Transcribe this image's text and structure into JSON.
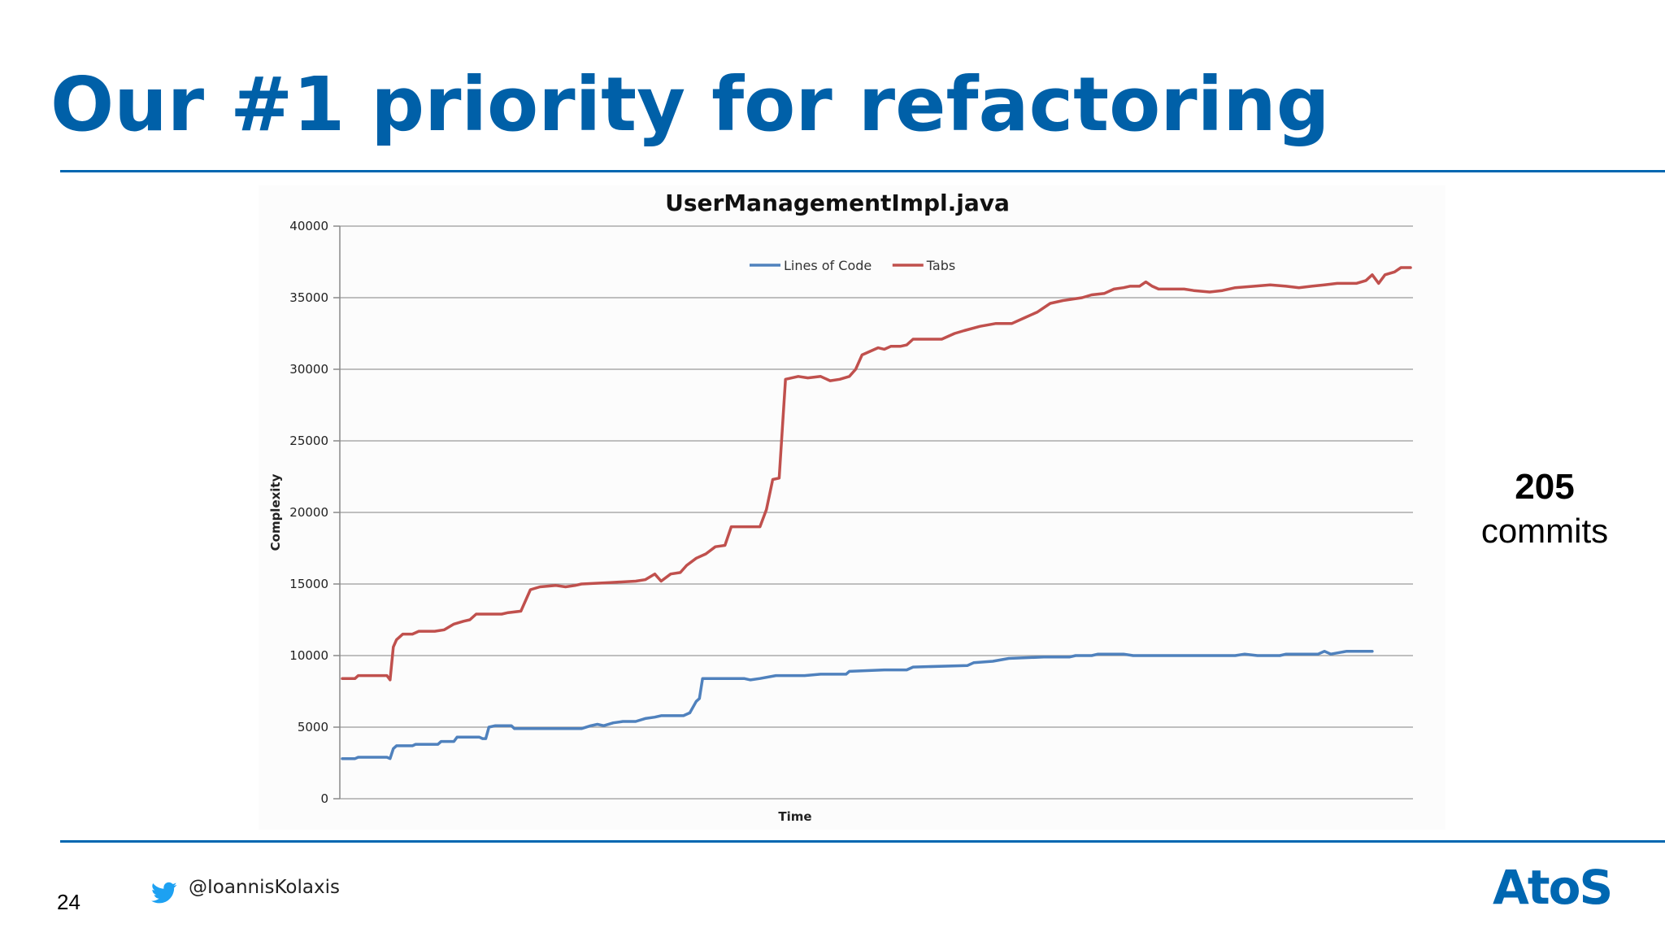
{
  "slide": {
    "title": "Our #1 priority for refactoring",
    "side_note": {
      "number": "205",
      "text": "commits"
    },
    "page_number": "24",
    "twitter_handle": "@IoannisKolaxis",
    "brand": "AtoS",
    "accent_color": "#0067b1"
  },
  "chart_data": {
    "type": "line",
    "title": "UserManagementImpl.java",
    "xlabel": "Time",
    "ylabel": "Complexity",
    "ylim": [
      0,
      40000
    ],
    "yticks": [
      "0",
      "5000",
      "10000",
      "15000",
      "20000",
      "25000",
      "30000",
      "35000",
      "40000"
    ],
    "grid": true,
    "legend_position": "top-center",
    "x_note": "commit index 0-205 (no tick labels shown)",
    "series": [
      {
        "name": "Lines of Code",
        "color": "#4f81bd",
        "points": [
          [
            0,
            2800
          ],
          [
            8,
            2800
          ],
          [
            10,
            2900
          ],
          [
            28,
            2900
          ],
          [
            30,
            2800
          ],
          [
            32,
            3500
          ],
          [
            34,
            3700
          ],
          [
            44,
            3700
          ],
          [
            46,
            3800
          ],
          [
            60,
            3800
          ],
          [
            62,
            4000
          ],
          [
            70,
            4000
          ],
          [
            72,
            4300
          ],
          [
            86,
            4300
          ],
          [
            88,
            4200
          ],
          [
            90,
            4200
          ],
          [
            92,
            5000
          ],
          [
            96,
            5100
          ],
          [
            106,
            5100
          ],
          [
            108,
            4900
          ],
          [
            150,
            4900
          ],
          [
            156,
            5100
          ],
          [
            160,
            5200
          ],
          [
            164,
            5100
          ],
          [
            170,
            5300
          ],
          [
            176,
            5400
          ],
          [
            184,
            5400
          ],
          [
            190,
            5600
          ],
          [
            196,
            5700
          ],
          [
            200,
            5800
          ],
          [
            214,
            5800
          ],
          [
            218,
            6000
          ],
          [
            222,
            6800
          ],
          [
            224,
            7000
          ],
          [
            226,
            8400
          ],
          [
            252,
            8400
          ],
          [
            256,
            8300
          ],
          [
            262,
            8400
          ],
          [
            272,
            8600
          ],
          [
            290,
            8600
          ],
          [
            300,
            8700
          ],
          [
            316,
            8700
          ],
          [
            318,
            8900
          ],
          [
            340,
            9000
          ],
          [
            354,
            9000
          ],
          [
            358,
            9200
          ],
          [
            392,
            9300
          ],
          [
            396,
            9500
          ],
          [
            408,
            9600
          ],
          [
            418,
            9800
          ],
          [
            440,
            9900
          ],
          [
            456,
            9900
          ],
          [
            460,
            10000
          ],
          [
            470,
            10000
          ],
          [
            474,
            10100
          ],
          [
            490,
            10100
          ],
          [
            496,
            10000
          ],
          [
            560,
            10000
          ],
          [
            566,
            10100
          ],
          [
            574,
            10000
          ],
          [
            588,
            10000
          ],
          [
            592,
            10100
          ],
          [
            612,
            10100
          ],
          [
            616,
            10300
          ],
          [
            620,
            10100
          ],
          [
            630,
            10300
          ],
          [
            646,
            10300
          ]
        ]
      },
      {
        "name": "Tabs",
        "color": "#c0504d",
        "points": [
          [
            0,
            8400
          ],
          [
            8,
            8400
          ],
          [
            10,
            8600
          ],
          [
            28,
            8600
          ],
          [
            30,
            8300
          ],
          [
            32,
            10600
          ],
          [
            34,
            11100
          ],
          [
            38,
            11500
          ],
          [
            44,
            11500
          ],
          [
            48,
            11700
          ],
          [
            58,
            11700
          ],
          [
            64,
            11800
          ],
          [
            70,
            12200
          ],
          [
            76,
            12400
          ],
          [
            80,
            12500
          ],
          [
            84,
            12900
          ],
          [
            100,
            12900
          ],
          [
            104,
            13000
          ],
          [
            112,
            13100
          ],
          [
            118,
            14600
          ],
          [
            124,
            14800
          ],
          [
            134,
            14900
          ],
          [
            140,
            14800
          ],
          [
            146,
            14900
          ],
          [
            150,
            15000
          ],
          [
            168,
            15100
          ],
          [
            184,
            15200
          ],
          [
            190,
            15300
          ],
          [
            196,
            15700
          ],
          [
            200,
            15200
          ],
          [
            206,
            15700
          ],
          [
            212,
            15800
          ],
          [
            216,
            16300
          ],
          [
            222,
            16800
          ],
          [
            228,
            17100
          ],
          [
            234,
            17600
          ],
          [
            240,
            17700
          ],
          [
            244,
            19000
          ],
          [
            252,
            19000
          ],
          [
            262,
            19000
          ],
          [
            266,
            20200
          ],
          [
            270,
            22300
          ],
          [
            274,
            22400
          ],
          [
            278,
            29300
          ],
          [
            286,
            29500
          ],
          [
            292,
            29400
          ],
          [
            300,
            29500
          ],
          [
            306,
            29200
          ],
          [
            312,
            29300
          ],
          [
            318,
            29500
          ],
          [
            322,
            30000
          ],
          [
            326,
            31000
          ],
          [
            332,
            31300
          ],
          [
            336,
            31500
          ],
          [
            340,
            31400
          ],
          [
            344,
            31600
          ],
          [
            350,
            31600
          ],
          [
            354,
            31700
          ],
          [
            358,
            32100
          ],
          [
            376,
            32100
          ],
          [
            384,
            32500
          ],
          [
            390,
            32700
          ],
          [
            400,
            33000
          ],
          [
            410,
            33200
          ],
          [
            420,
            33200
          ],
          [
            428,
            33600
          ],
          [
            436,
            34000
          ],
          [
            444,
            34600
          ],
          [
            452,
            34800
          ],
          [
            464,
            35000
          ],
          [
            470,
            35200
          ],
          [
            478,
            35300
          ],
          [
            484,
            35600
          ],
          [
            490,
            35700
          ],
          [
            494,
            35800
          ],
          [
            500,
            35800
          ],
          [
            504,
            36100
          ],
          [
            508,
            35800
          ],
          [
            512,
            35600
          ],
          [
            520,
            35600
          ],
          [
            528,
            35600
          ],
          [
            534,
            35500
          ],
          [
            544,
            35400
          ],
          [
            552,
            35500
          ],
          [
            560,
            35700
          ],
          [
            572,
            35800
          ],
          [
            582,
            35900
          ],
          [
            592,
            35800
          ],
          [
            600,
            35700
          ],
          [
            608,
            35800
          ],
          [
            616,
            35900
          ],
          [
            624,
            36000
          ],
          [
            632,
            36000
          ],
          [
            636,
            36000
          ],
          [
            642,
            36200
          ],
          [
            646,
            36600
          ],
          [
            650,
            36000
          ],
          [
            654,
            36600
          ],
          [
            660,
            36800
          ],
          [
            664,
            37100
          ],
          [
            670,
            37100
          ]
        ]
      }
    ]
  }
}
